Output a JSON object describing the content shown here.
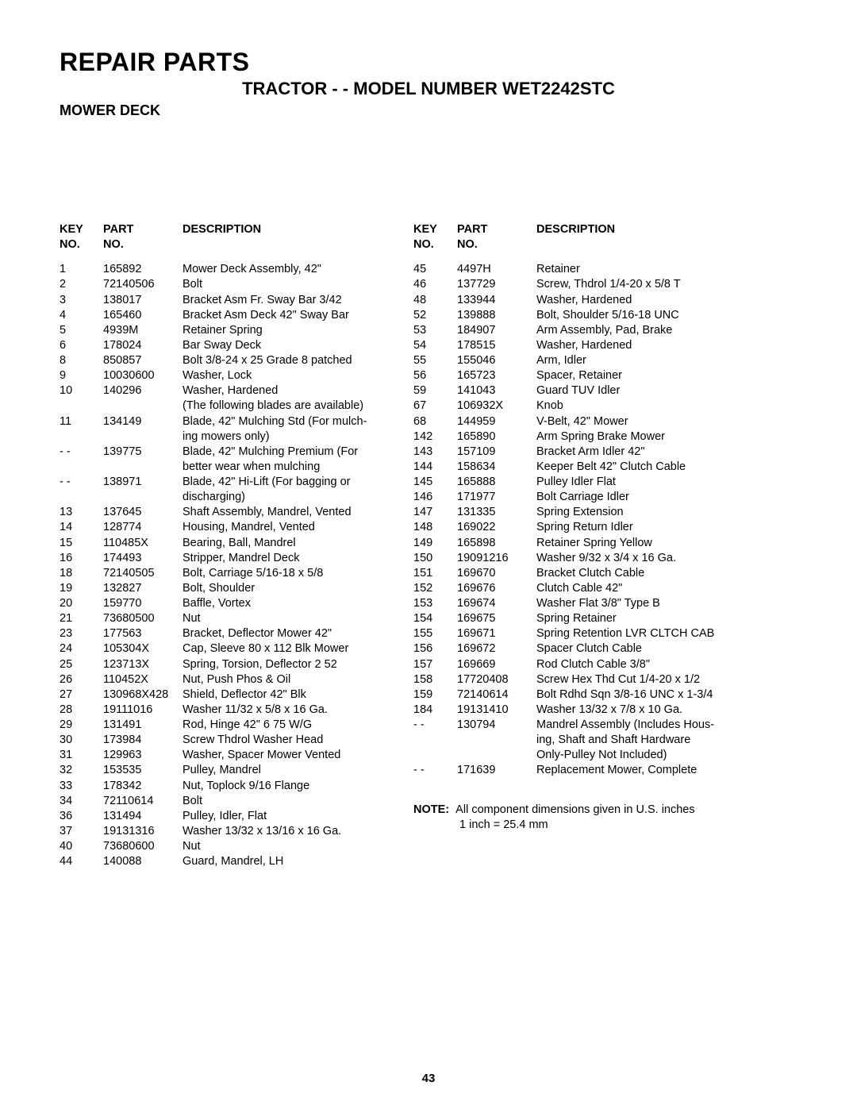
{
  "header": {
    "main": "REPAIR PARTS",
    "sub": "TRACTOR - - MODEL NUMBER WET2242STC",
    "section": "MOWER DECK"
  },
  "table": {
    "headers": {
      "key": "KEY\nNO.",
      "part": "PART\nNO.",
      "desc": "DESCRIPTION"
    },
    "left": [
      {
        "key": "1",
        "part": "165892",
        "desc": "Mower Deck Assembly, 42\""
      },
      {
        "key": "2",
        "part": "72140506",
        "desc": "Bolt"
      },
      {
        "key": "3",
        "part": "138017",
        "desc": "Bracket Asm Fr. Sway Bar 3/42"
      },
      {
        "key": "4",
        "part": "165460",
        "desc": "Bracket Asm Deck 42\" Sway Bar"
      },
      {
        "key": "5",
        "part": "4939M",
        "desc": "Retainer Spring"
      },
      {
        "key": "6",
        "part": "178024",
        "desc": "Bar Sway Deck"
      },
      {
        "key": "8",
        "part": "850857",
        "desc": "Bolt  3/8-24 x 25 Grade 8 patched"
      },
      {
        "key": "9",
        "part": "10030600",
        "desc": "Washer, Lock"
      },
      {
        "key": "10",
        "part": "140296",
        "desc": "Washer, Hardened"
      },
      {
        "key": "",
        "part": "",
        "desc": "(The following blades are available)"
      },
      {
        "key": "11",
        "part": "134149",
        "desc": "Blade, 42\" Mulching Std (For mulch-"
      },
      {
        "key": "",
        "part": "",
        "desc": "ing mowers only)"
      },
      {
        "key": "- -",
        "part": "139775",
        "desc": "Blade, 42\" Mulching Premium (For"
      },
      {
        "key": "",
        "part": "",
        "desc": "better wear when mulching"
      },
      {
        "key": "- -",
        "part": "138971",
        "desc": "Blade, 42\" Hi-Lift (For bagging or"
      },
      {
        "key": "",
        "part": "",
        "desc": "discharging)"
      },
      {
        "key": "13",
        "part": "137645",
        "desc": "Shaft Assembly, Mandrel, Vented"
      },
      {
        "key": "14",
        "part": "128774",
        "desc": "Housing, Mandrel, Vented"
      },
      {
        "key": "15",
        "part": "110485X",
        "desc": "Bearing, Ball, Mandrel"
      },
      {
        "key": "16",
        "part": "174493",
        "desc": "Stripper, Mandrel Deck"
      },
      {
        "key": "18",
        "part": "72140505",
        "desc": "Bolt, Carriage  5/16-18 x 5/8"
      },
      {
        "key": "19",
        "part": "132827",
        "desc": "Bolt, Shoulder"
      },
      {
        "key": "20",
        "part": "159770",
        "desc": "Baffle, Vortex"
      },
      {
        "key": "21",
        "part": "73680500",
        "desc": "Nut"
      },
      {
        "key": "23",
        "part": "177563",
        "desc": "Bracket, Deflector Mower 42\""
      },
      {
        "key": "24",
        "part": "105304X",
        "desc": "Cap, Sleeve  80 x 112 Blk Mower"
      },
      {
        "key": "25",
        "part": "123713X",
        "desc": "Spring, Torsion, Deflector 2 52"
      },
      {
        "key": "26",
        "part": "110452X",
        "desc": "Nut, Push Phos & Oil"
      },
      {
        "key": "27",
        "part": "130968X428",
        "desc": "Shield, Deflector 42\" Blk"
      },
      {
        "key": "28",
        "part": "19111016",
        "desc": "Washer  11/32 x 5/8 x 16 Ga."
      },
      {
        "key": "29",
        "part": "131491",
        "desc": "Rod, Hinge 42\" 6 75 W/G"
      },
      {
        "key": "30",
        "part": "173984",
        "desc": "Screw Thdrol Washer Head"
      },
      {
        "key": "31",
        "part": "129963",
        "desc": "Washer, Spacer Mower Vented"
      },
      {
        "key": "32",
        "part": "153535",
        "desc": "Pulley, Mandrel"
      },
      {
        "key": "33",
        "part": "178342",
        "desc": "Nut, Toplock  9/16 Flange"
      },
      {
        "key": "34",
        "part": "72110614",
        "desc": "Bolt"
      },
      {
        "key": "36",
        "part": "131494",
        "desc": "Pulley, Idler, Flat"
      },
      {
        "key": "37",
        "part": "19131316",
        "desc": "Washer  13/32 x 13/16 x 16 Ga."
      },
      {
        "key": "40",
        "part": "73680600",
        "desc": "Nut"
      },
      {
        "key": "44",
        "part": "140088",
        "desc": "Guard, Mandrel, LH"
      }
    ],
    "right": [
      {
        "key": "45",
        "part": "4497H",
        "desc": "Retainer"
      },
      {
        "key": "46",
        "part": "137729",
        "desc": "Screw,  Thdrol 1/4-20 x 5/8 T"
      },
      {
        "key": "48",
        "part": "133944",
        "desc": "Washer, Hardened"
      },
      {
        "key": "52",
        "part": "139888",
        "desc": "Bolt, Shoulder  5/16-18 UNC"
      },
      {
        "key": "53",
        "part": "184907",
        "desc": "Arm Assembly, Pad, Brake"
      },
      {
        "key": "54",
        "part": "178515",
        "desc": "Washer, Hardened"
      },
      {
        "key": "55",
        "part": "155046",
        "desc": "Arm, Idler"
      },
      {
        "key": "56",
        "part": "165723",
        "desc": "Spacer, Retainer"
      },
      {
        "key": "59",
        "part": "141043",
        "desc": "Guard TUV Idler"
      },
      {
        "key": "67",
        "part": "106932X",
        "desc": "Knob"
      },
      {
        "key": "68",
        "part": "144959",
        "desc": "V-Belt, 42\" Mower"
      },
      {
        "key": "142",
        "part": "165890",
        "desc": "Arm Spring Brake Mower"
      },
      {
        "key": "143",
        "part": "157109",
        "desc": "Bracket Arm Idler 42\""
      },
      {
        "key": "144",
        "part": "158634",
        "desc": "Keeper Belt 42\" Clutch Cable"
      },
      {
        "key": "145",
        "part": "165888",
        "desc": "Pulley Idler Flat"
      },
      {
        "key": "146",
        "part": "171977",
        "desc": "Bolt Carriage Idler"
      },
      {
        "key": "147",
        "part": "131335",
        "desc": "Spring Extension"
      },
      {
        "key": "148",
        "part": "169022",
        "desc": "Spring Return Idler"
      },
      {
        "key": "149",
        "part": "165898",
        "desc": "Retainer Spring Yellow"
      },
      {
        "key": "150",
        "part": "19091216",
        "desc": "Washer 9/32 x 3/4 x 16 Ga."
      },
      {
        "key": "151",
        "part": "169670",
        "desc": "Bracket Clutch Cable"
      },
      {
        "key": "152",
        "part": "169676",
        "desc": "Clutch Cable 42\""
      },
      {
        "key": "153",
        "part": "169674",
        "desc": "Washer Flat 3/8\" Type B"
      },
      {
        "key": "154",
        "part": "169675",
        "desc": "Spring Retainer"
      },
      {
        "key": "155",
        "part": "169671",
        "desc": "Spring Retention LVR CLTCH CAB"
      },
      {
        "key": "156",
        "part": "169672",
        "desc": "Spacer Clutch Cable"
      },
      {
        "key": "157",
        "part": "169669",
        "desc": "Rod Clutch Cable 3/8\""
      },
      {
        "key": "158",
        "part": "17720408",
        "desc": "Screw Hex Thd Cut 1/4-20 x 1/2"
      },
      {
        "key": "159",
        "part": "72140614",
        "desc": "Bolt Rdhd Sqn 3/8-16 UNC x 1-3/4"
      },
      {
        "key": "184",
        "part": "19131410",
        "desc": "Washer 13/32 x 7/8 x 10 Ga."
      },
      {
        "key": "- -",
        "part": "130794",
        "desc": "Mandrel Assembly (Includes Hous-"
      },
      {
        "key": "",
        "part": "",
        "desc": "ing, Shaft and Shaft Hardware"
      },
      {
        "key": "",
        "part": "",
        "desc": "Only-Pulley Not Included)"
      },
      {
        "key": "- -",
        "part": "171639",
        "desc": "Replacement Mower, Complete"
      }
    ]
  },
  "note": {
    "label": "NOTE:",
    "line1": "All component dimensions given in U.S. inches",
    "line2": "1 inch = 25.4 mm"
  },
  "pageNumber": "43"
}
